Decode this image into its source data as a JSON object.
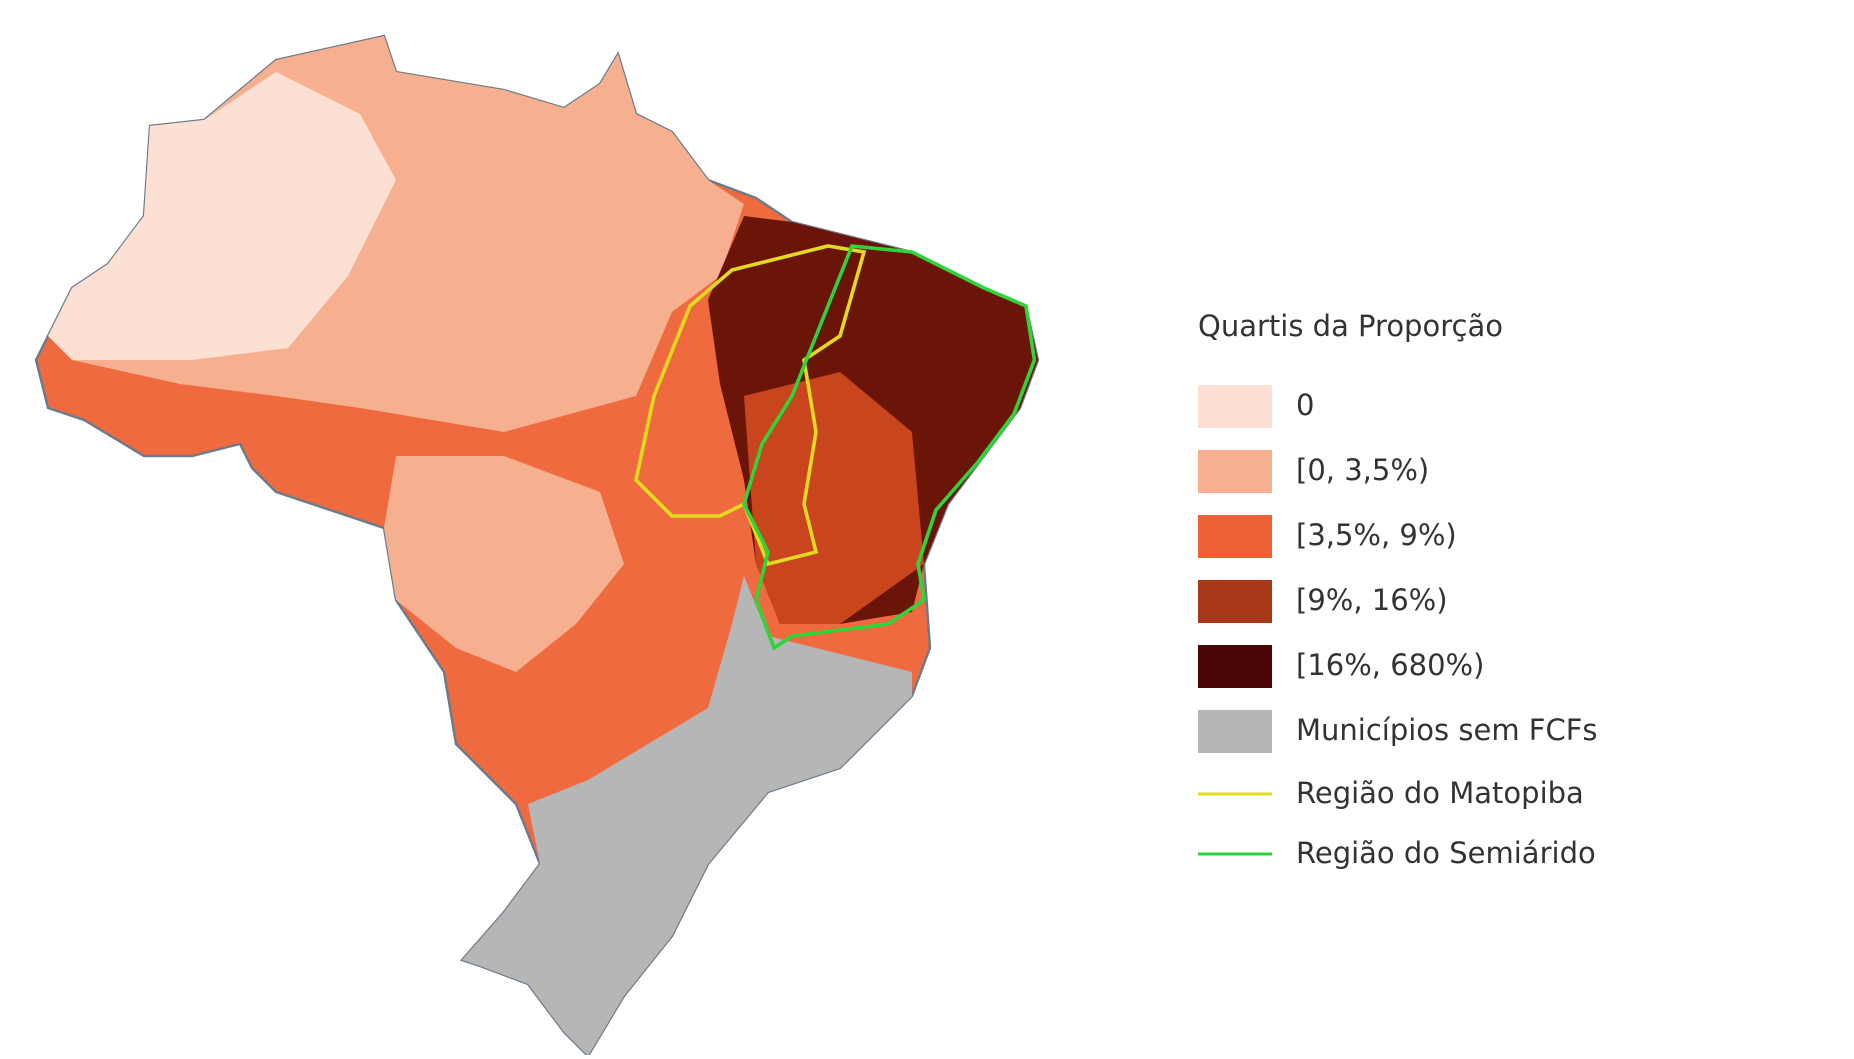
{
  "legend": {
    "title": "Quartis da Proporção",
    "items": [
      {
        "label": "0",
        "color": "#fde0d4"
      },
      {
        "label": "[0, 3,5%)",
        "color": "#f6b08f"
      },
      {
        "label": "[3,5%, 9%)",
        "color": "#ef6236"
      },
      {
        "label": "[9%, 16%)",
        "color": "#a8381a"
      },
      {
        "label": "[16%, 680%)",
        "color": "#4a0706"
      },
      {
        "label": "Municípios sem FCFs",
        "color": "#b7b6b6"
      }
    ],
    "lines": [
      {
        "label": "Região do Matopiba",
        "color": "#e3da1f"
      },
      {
        "label": "Região do Semiárido",
        "color": "#2ed43a"
      }
    ]
  }
}
